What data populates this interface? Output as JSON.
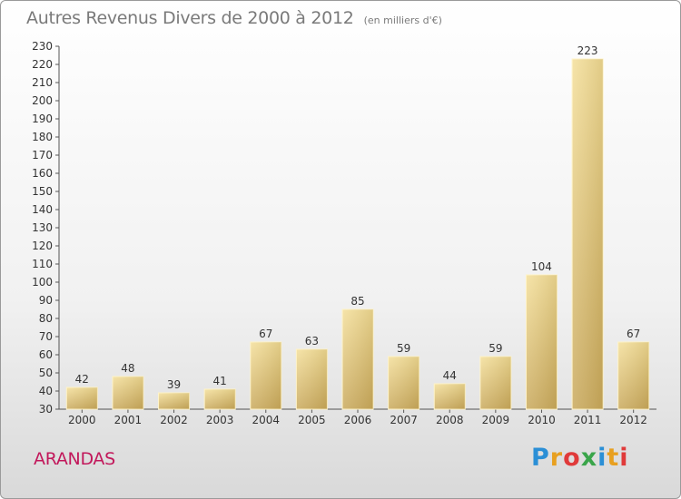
{
  "header": {
    "title": "Autres Revenus Divers de 2000 à 2012",
    "unit": "(en milliers d'€)"
  },
  "footer": {
    "place": "ARANDAS",
    "logo": "Proxiti",
    "logo_colors": [
      "#2b8fd6",
      "#e8a020",
      "#e03a3a",
      "#3aa54a",
      "#2b8fd6",
      "#e8a020",
      "#e03a3a"
    ]
  },
  "chart_data": {
    "type": "bar",
    "title": "Autres Revenus Divers de 2000 à 2012",
    "categories": [
      "2000",
      "2001",
      "2002",
      "2003",
      "2004",
      "2005",
      "2006",
      "2007",
      "2008",
      "2009",
      "2010",
      "2011",
      "2012"
    ],
    "values": [
      42,
      48,
      39,
      41,
      67,
      63,
      85,
      59,
      44,
      59,
      104,
      223,
      67
    ],
    "ylim": [
      30,
      230
    ],
    "ytick_step": 10,
    "grid": false,
    "bar_color": "#e2c67a"
  }
}
